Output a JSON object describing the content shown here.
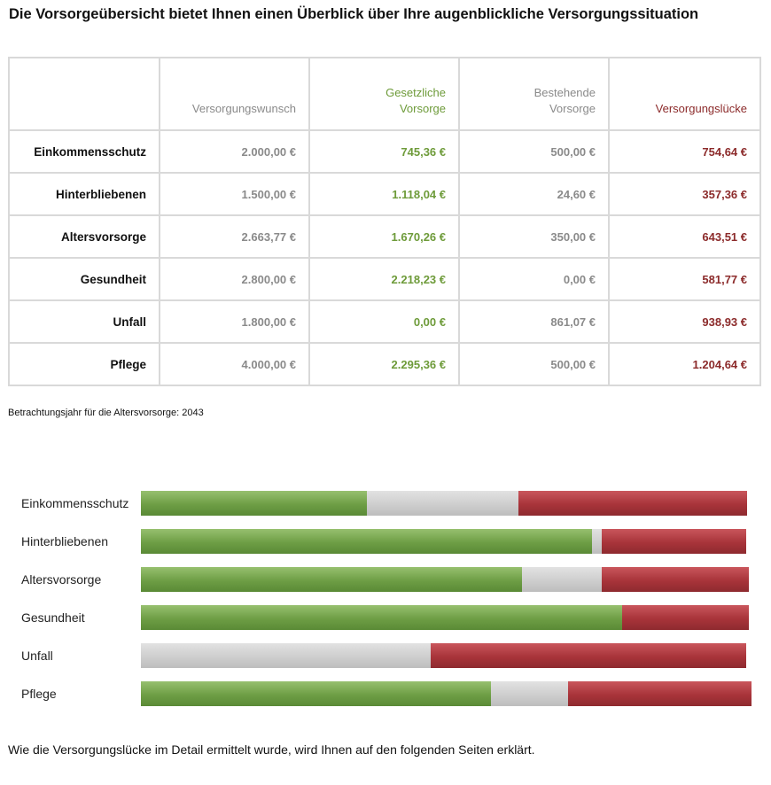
{
  "title": "Die Vorsorgeübersicht bietet Ihnen einen Überblick über Ihre augenblickliche Versorgungssituation",
  "table": {
    "headers": {
      "empty": "",
      "wunsch": "Versorgungswunsch",
      "gesetzlich_1": "Gesetzliche",
      "gesetzlich_2": "Vorsorge",
      "bestehend_1": "Bestehende",
      "bestehend_2": "Vorsorge",
      "luecke": "Versorgungslücke"
    },
    "rows": [
      {
        "label": "Einkommensschutz",
        "wunsch": "2.000,00 €",
        "gesetzlich": "745,36 €",
        "bestehend": "500,00 €",
        "luecke": "754,64 €"
      },
      {
        "label": "Hinterbliebenen",
        "wunsch": "1.500,00 €",
        "gesetzlich": "1.118,04 €",
        "bestehend": "24,60 €",
        "luecke": "357,36 €"
      },
      {
        "label": "Altersvorsorge",
        "wunsch": "2.663,77 €",
        "gesetzlich": "1.670,26 €",
        "bestehend": "350,00 €",
        "luecke": "643,51 €"
      },
      {
        "label": "Gesundheit",
        "wunsch": "2.800,00 €",
        "gesetzlich": "2.218,23 €",
        "bestehend": "0,00 €",
        "luecke": "581,77 €"
      },
      {
        "label": "Unfall",
        "wunsch": "1.800,00 €",
        "gesetzlich": "0,00 €",
        "bestehend": "861,07 €",
        "luecke": "938,93 €"
      },
      {
        "label": "Pflege",
        "wunsch": "4.000,00 €",
        "gesetzlich": "2.295,36 €",
        "bestehend": "500,00 €",
        "luecke": "1.204,64 €"
      }
    ]
  },
  "note": "Betrachtungsjahr für die Altersvorsorge: 2043",
  "chart_data": {
    "type": "bar",
    "orientation": "horizontal-stacked-100",
    "categories": [
      "Einkommensschutz",
      "Hinterbliebenen",
      "Altersvorsorge",
      "Gesundheit",
      "Unfall",
      "Pflege"
    ],
    "series": [
      {
        "values": [
          745.36,
          1118.04,
          1670.26,
          2218.23,
          0.0,
          2295.36
        ]
      },
      {
        "values": [
          500.0,
          24.6,
          350.0,
          0.0,
          861.07,
          500.0
        ]
      },
      {
        "values": [
          754.64,
          357.36,
          643.51,
          581.77,
          938.93,
          1204.64
        ]
      }
    ],
    "colors": [
      "#6e9e45",
      "#cccccc",
      "#a8343a"
    ]
  },
  "footer": "Wie die Versorgungslücke im Detail ermittelt wurde, wird Ihnen auf den folgenden Seiten erklärt."
}
